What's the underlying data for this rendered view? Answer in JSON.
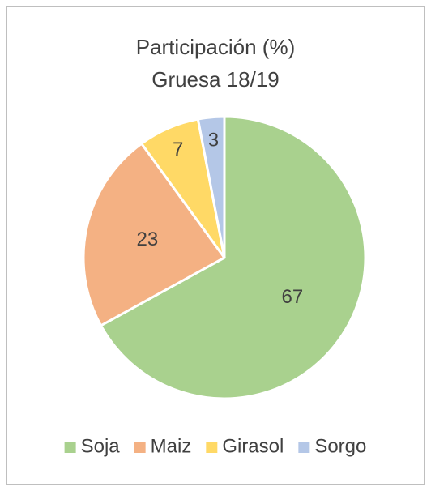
{
  "chart_data": {
    "type": "pie",
    "title": "Participación (%)",
    "subtitle": "Gruesa 18/19",
    "categories": [
      "Soja",
      "Maiz",
      "Girasol",
      "Sorgo"
    ],
    "values": [
      67,
      23,
      7,
      3
    ],
    "colors": [
      "#a9d18e",
      "#f4b183",
      "#ffd966",
      "#b4c7e7"
    ],
    "legend": "bottom"
  }
}
